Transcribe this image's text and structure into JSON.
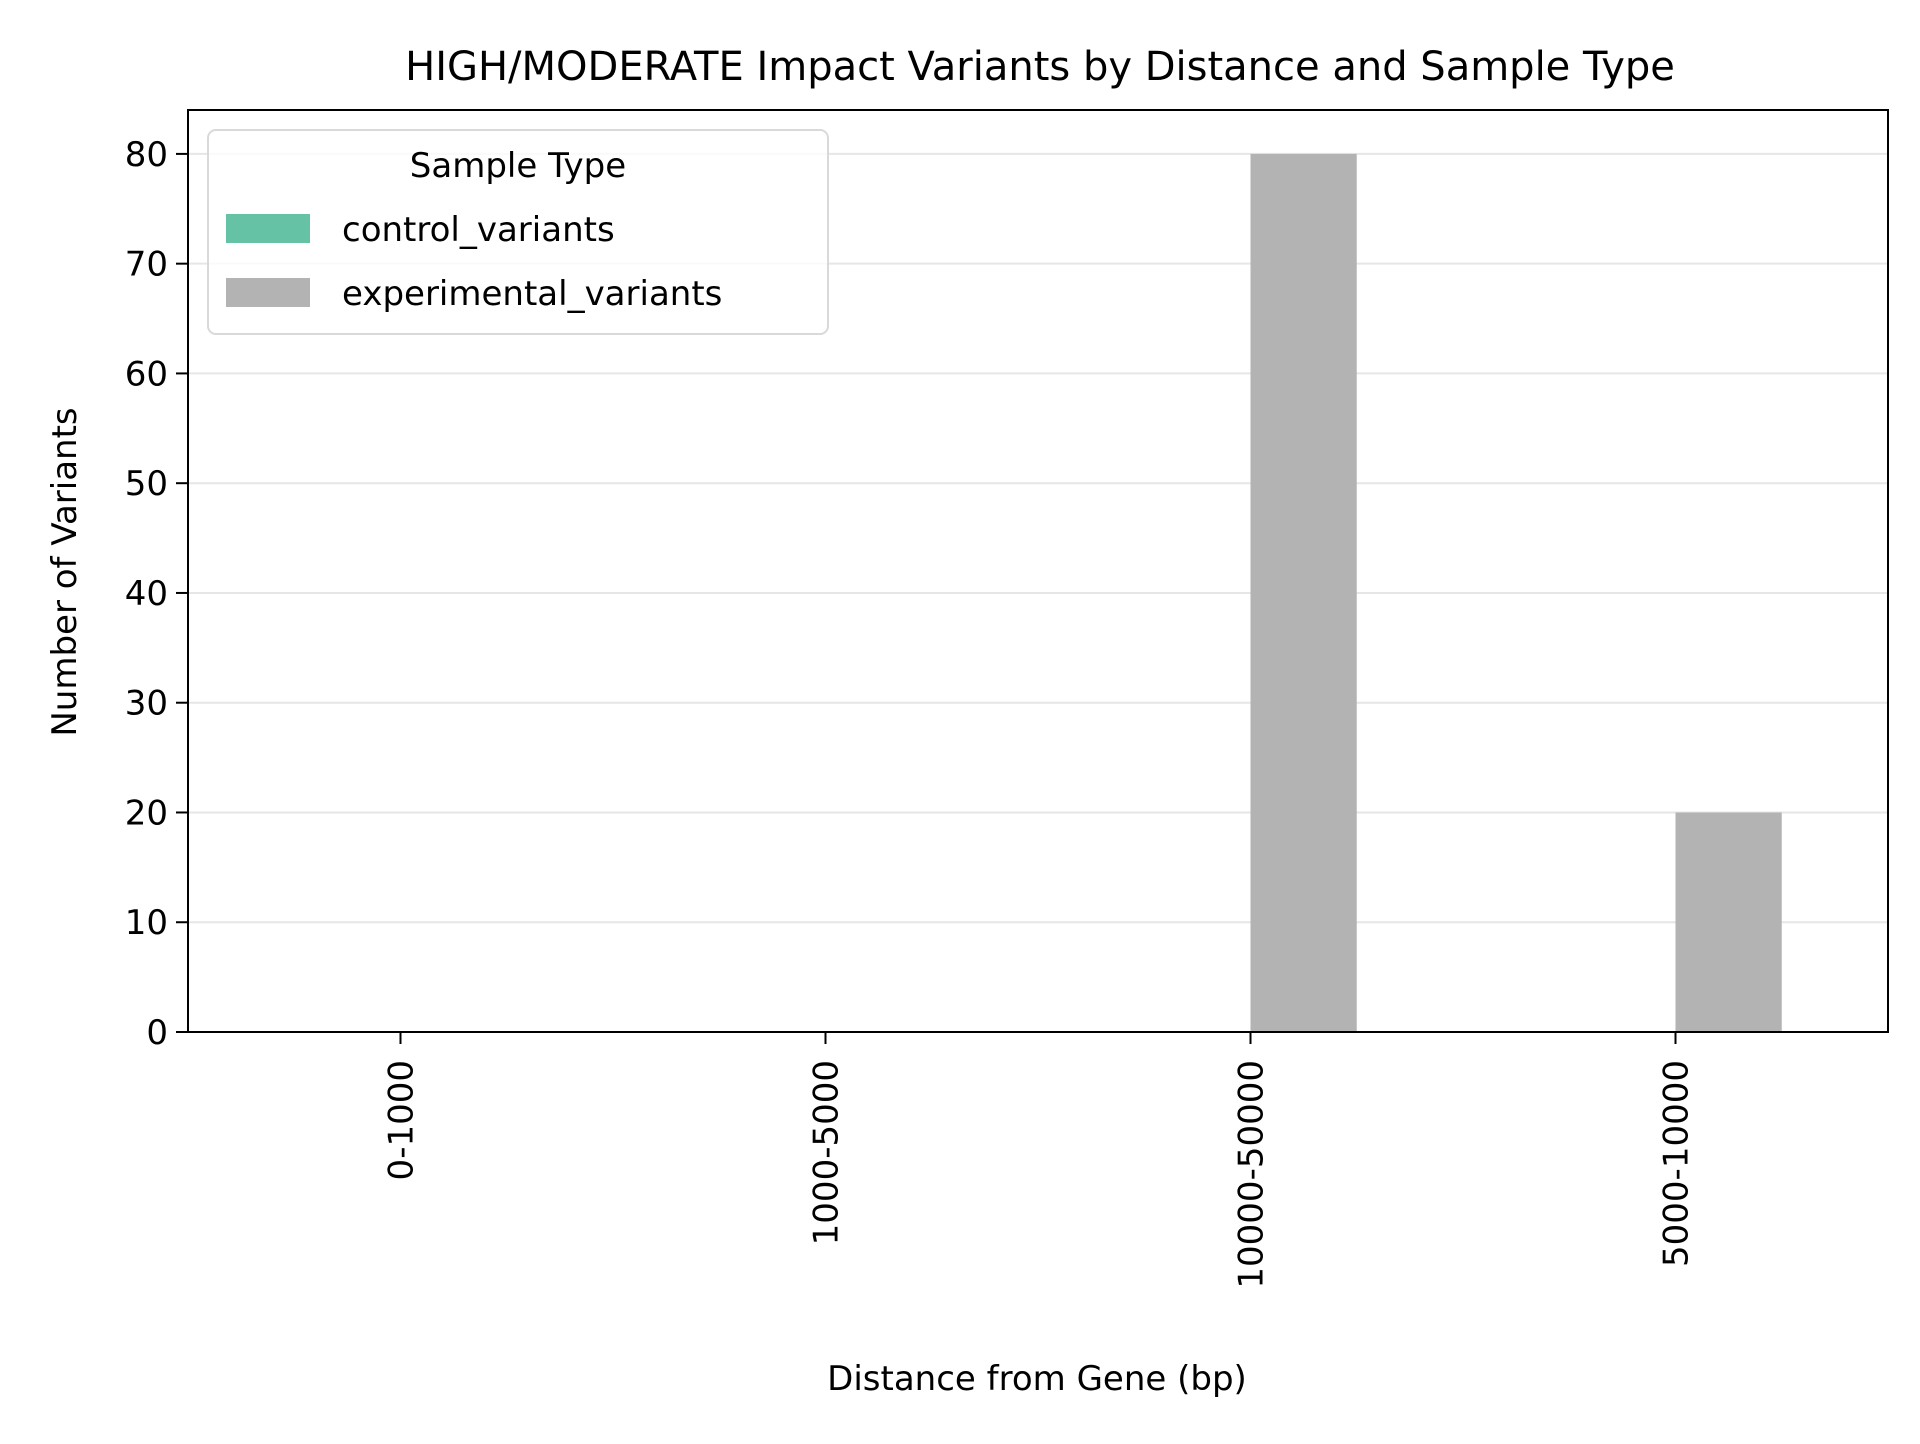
{
  "chart_data": {
    "type": "bar",
    "title": "HIGH/MODERATE Impact Variants by Distance and Sample Type",
    "xlabel": "Distance from Gene (bp)",
    "ylabel": "Number of Variants",
    "categories": [
      "0-1000",
      "1000-5000",
      "10000-50000",
      "5000-10000"
    ],
    "series": [
      {
        "name": "control_variants",
        "values": [
          0,
          0,
          0,
          0
        ],
        "color": "#66c2a5"
      },
      {
        "name": "experimental_variants",
        "values": [
          0,
          0,
          80,
          20
        ],
        "color": "#b3b3b3"
      }
    ],
    "ylim": [
      0,
      84
    ],
    "yticks": [
      0,
      10,
      20,
      30,
      40,
      50,
      60,
      70,
      80
    ],
    "grid": "y",
    "legend": {
      "title": "Sample Type",
      "placement": "top-left"
    }
  }
}
